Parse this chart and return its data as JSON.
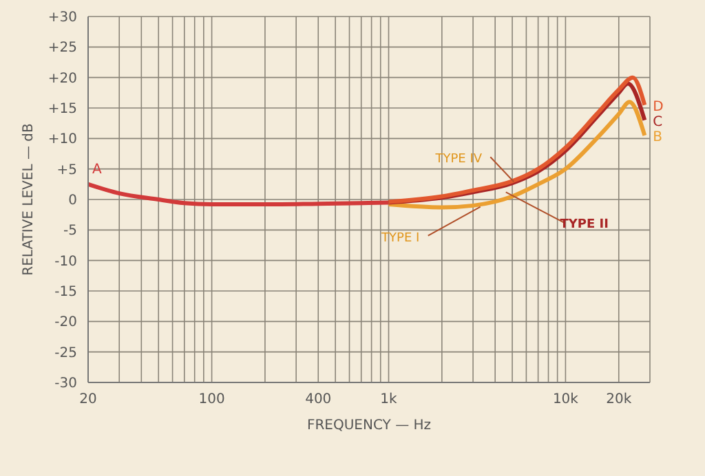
{
  "chart_data": {
    "type": "line",
    "xlabel": "FREQUENCY — Hz",
    "ylabel": "RELATIVE LEVEL — dB",
    "log": "x",
    "xlim": [
      20,
      30000
    ],
    "xticks": [
      20,
      100,
      400,
      {
        "value": 1000,
        "label": "1k"
      },
      {
        "value": 10000,
        "label": "10k"
      },
      {
        "value": 20000,
        "label": "20k"
      }
    ],
    "ylim": [
      -30,
      30
    ],
    "yticks": [
      {
        "value": -30,
        "label": "-30"
      },
      {
        "value": -25,
        "label": "-25"
      },
      {
        "value": -20,
        "label": "-20"
      },
      {
        "value": -15,
        "label": "-15"
      },
      {
        "value": -10,
        "label": "-10"
      },
      {
        "value": -5,
        "label": "-5"
      },
      0,
      {
        "value": 5,
        "label": "+5"
      },
      {
        "value": 10,
        "label": "+10"
      },
      {
        "value": 15,
        "label": "+15"
      },
      {
        "value": 20,
        "label": "+20"
      },
      {
        "value": 25,
        "label": "+25"
      },
      {
        "value": 30,
        "label": "+30"
      }
    ],
    "grid": true,
    "marker": "none",
    "line_style": "solid",
    "series": [
      {
        "name": "A",
        "color": "#d23a3a",
        "x": [
          20,
          30,
          50,
          70,
          100,
          200,
          400,
          700,
          1000
        ],
        "values": [
          2.5,
          1,
          0,
          -0.6,
          -0.8,
          -0.8,
          -0.7,
          -0.6,
          -0.5
        ]
      },
      {
        "name": "B",
        "color": "#eba032",
        "x": [
          1000,
          2000,
          3000,
          5000,
          7000,
          10000,
          15000,
          20000,
          23000,
          28000
        ],
        "values": [
          -0.8,
          -1.3,
          -1,
          0.5,
          2.5,
          5,
          10,
          14,
          16,
          10.5
        ]
      },
      {
        "name": "C",
        "color": "#a82525",
        "x": [
          1000,
          2000,
          3000,
          5000,
          7000,
          10000,
          15000,
          20000,
          22500,
          28000
        ],
        "values": [
          -0.5,
          0.3,
          1.2,
          2.7,
          4.6,
          8,
          13.5,
          17.5,
          19,
          13
        ]
      },
      {
        "name": "D",
        "color": "#e2582e",
        "x": [
          1000,
          2000,
          3000,
          5000,
          7000,
          10000,
          15000,
          20000,
          24000,
          28000
        ],
        "values": [
          -0.4,
          0.5,
          1.5,
          3,
          5,
          8.5,
          14,
          18,
          20,
          15.5
        ]
      }
    ],
    "annotations": [
      {
        "text": "TYPE IV",
        "x": 5100,
        "y": 2.9
      },
      {
        "text": "TYPE II",
        "x": 4600,
        "y": 1.2
      },
      {
        "text": "TYPE I",
        "x": 3300,
        "y": -1.2
      }
    ]
  }
}
